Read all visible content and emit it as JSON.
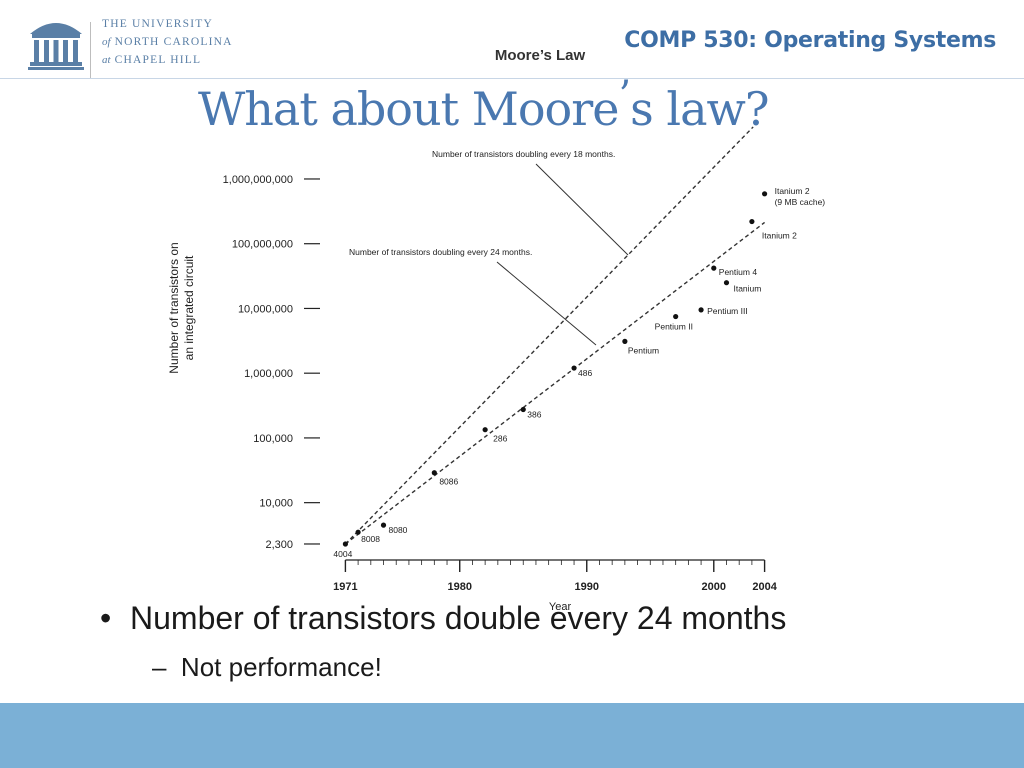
{
  "header": {
    "university": {
      "line1": "THE UNIVERSITY",
      "line2_italic": "of",
      "line2": "NORTH CAROLINA",
      "line3_italic": "at",
      "line3": "CHAPEL HILL"
    },
    "course_title": "COMP 530: Operating Systems"
  },
  "slide": {
    "title_part1": "What about Moore",
    "title_apostrophe": "’",
    "title_part2": "s law?"
  },
  "chart_data": {
    "type": "scatter",
    "title": "Moore’s Law",
    "xlabel": "Year",
    "ylabel_line1": "Number of transistors on",
    "ylabel_line2": "an integrated circuit",
    "yscale": "log",
    "xlim": [
      1969,
      2006
    ],
    "ylim": [
      1500,
      4000000000
    ],
    "x_ticks": [
      1971,
      1980,
      1990,
      2000,
      2004
    ],
    "y_ticks": [
      {
        "value": 1000000000,
        "label": "1,000,000,000"
      },
      {
        "value": 100000000,
        "label": "100,000,000"
      },
      {
        "value": 10000000,
        "label": "10,000,000"
      },
      {
        "value": 1000000,
        "label": "1,000,000"
      },
      {
        "value": 100000,
        "label": "100,000"
      },
      {
        "value": 10000,
        "label": "10,000"
      },
      {
        "value": 2300,
        "label": "2,300"
      }
    ],
    "points": [
      {
        "name": "4004",
        "x": 1971,
        "y": 2300
      },
      {
        "name": "8008",
        "x": 1972,
        "y": 3500
      },
      {
        "name": "8080",
        "x": 1974,
        "y": 4500
      },
      {
        "name": "8086",
        "x": 1978,
        "y": 29000
      },
      {
        "name": "286",
        "x": 1982,
        "y": 134000
      },
      {
        "name": "386",
        "x": 1985,
        "y": 275000
      },
      {
        "name": "486",
        "x": 1989,
        "y": 1200000
      },
      {
        "name": "Pentium",
        "x": 1993,
        "y": 3100000
      },
      {
        "name": "Pentium II",
        "x": 1997,
        "y": 7500000
      },
      {
        "name": "Pentium III",
        "x": 1999,
        "y": 9500000
      },
      {
        "name": "Pentium 4",
        "x": 2000,
        "y": 42000000
      },
      {
        "name": "Itanium",
        "x": 2001,
        "y": 25000000
      },
      {
        "name": "Itanium 2",
        "x": 2003,
        "y": 220000000
      },
      {
        "name": "Itanium 2\n(9 MB cache)",
        "x": 2004,
        "y": 590000000
      }
    ],
    "trend_lines": [
      {
        "label": "Number of transistors doubling every 18 months.",
        "doubling_months": 18,
        "start_year": 1971,
        "start_value": 2300,
        "end_year": 2003.1
      },
      {
        "label": "Number of transistors doubling every 24 months.",
        "doubling_months": 24,
        "start_year": 1971,
        "start_value": 2300,
        "end_year": 2004
      }
    ],
    "grid": false
  },
  "bullets": {
    "main": "Number of transistors double every 24 months",
    "sub": "Not performance!",
    "bullet_symbol": "•",
    "dash_symbol": "–"
  },
  "colors": {
    "title": "#4a78b0",
    "course_title": "#3d6ea5",
    "footer": "#7bb0d6",
    "logo": "#5a7fa6"
  }
}
